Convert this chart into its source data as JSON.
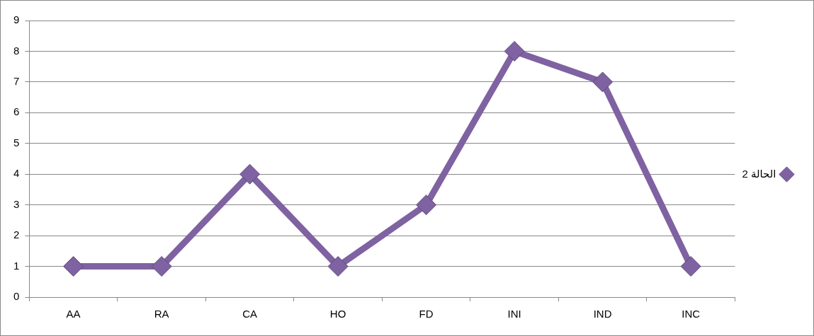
{
  "chart_data": {
    "type": "line",
    "categories": [
      "AA",
      "RA",
      "CA",
      "HO",
      "FD",
      "INI",
      "IND",
      "INC"
    ],
    "series": [
      {
        "name": "الحالة 2",
        "color": "#7f62a1",
        "values": [
          1,
          1,
          4,
          1,
          3,
          8,
          7,
          1
        ]
      }
    ],
    "ylim": [
      0,
      9
    ],
    "yticks": [
      0,
      1,
      2,
      3,
      4,
      5,
      6,
      7,
      8,
      9
    ],
    "grid": "y",
    "legend": "right",
    "marker": "diamond",
    "line_style": "solid"
  }
}
